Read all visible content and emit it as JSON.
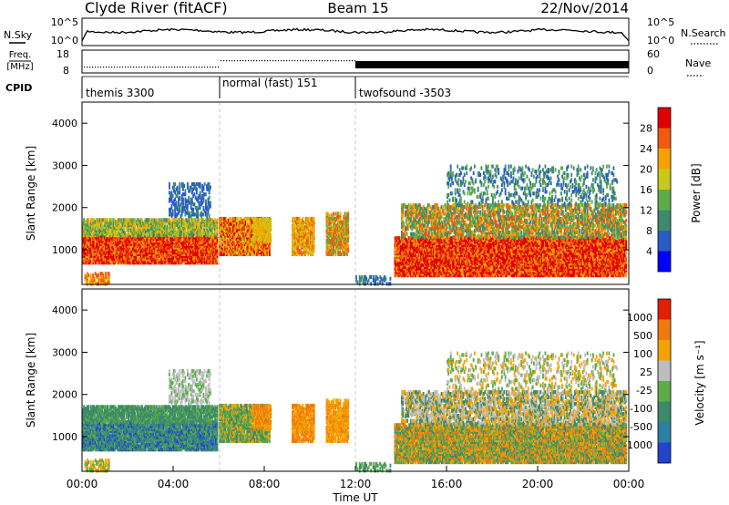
{
  "header": {
    "station": "Clyde River (fitACF)",
    "beam": "Beam 15",
    "date": "22/Nov/2014"
  },
  "nsky": {
    "label": "N.Sky",
    "right_label": "N.Search",
    "ticks": [
      "10^5",
      "10^0"
    ],
    "right_ticks": [
      "10^5",
      "10^0"
    ]
  },
  "freq": {
    "label_line1": "Freq.",
    "label_line2": "[MHz]",
    "ticks": [
      "18",
      "8"
    ],
    "nave_label": "Nave",
    "nave_ticks": [
      "60",
      "0"
    ]
  },
  "cpid": {
    "label": "CPID",
    "segments": [
      {
        "name": "themis 3300",
        "start_hour": 0,
        "end_hour": 6
      },
      {
        "name": "normal (fast) 151",
        "start_hour": 6,
        "end_hour": 12
      },
      {
        "name": "twofsound -3503",
        "start_hour": 12,
        "end_hour": 24
      }
    ]
  },
  "chart_data": [
    {
      "type": "heatmap",
      "parameter": "power",
      "ylabel": "Slant Range [km]",
      "ylim": [
        180,
        4500
      ],
      "yticks": [
        "4000",
        "3000",
        "2000",
        "1000"
      ],
      "colorbar_label": "Power [dB]",
      "colorbar_ticks": [
        "28",
        "24",
        "20",
        "16",
        "12",
        "8",
        "4"
      ],
      "colorbar_range": [
        0,
        30
      ],
      "colors": [
        "#0000ff",
        "#2a5cc8",
        "#3d8a70",
        "#5cad4a",
        "#c8c81a",
        "#f5a300",
        "#f05a10",
        "#e00000"
      ]
    },
    {
      "type": "heatmap",
      "parameter": "velocity",
      "ylabel": "Slant Range [km]",
      "ylim": [
        180,
        4500
      ],
      "yticks": [
        "4000",
        "3000",
        "2000",
        "1000"
      ],
      "colorbar_label": "Velocity [m s⁻¹]",
      "colorbar_ticks": [
        "1000",
        "500",
        "100",
        "25",
        "-25",
        "-100",
        "-500",
        "-1000"
      ],
      "colors": [
        "#2244cc",
        "#2e7fa8",
        "#3d8a6a",
        "#5cad4a",
        "#bdbdbd",
        "#f5a300",
        "#f07a10",
        "#e02000"
      ]
    }
  ],
  "time_axis": {
    "label": "Time UT",
    "xlim_hours": [
      0,
      24
    ],
    "ticks": [
      "00:00",
      "04:00",
      "08:00",
      "12:00",
      "16:00",
      "20:00",
      "00:00"
    ]
  }
}
